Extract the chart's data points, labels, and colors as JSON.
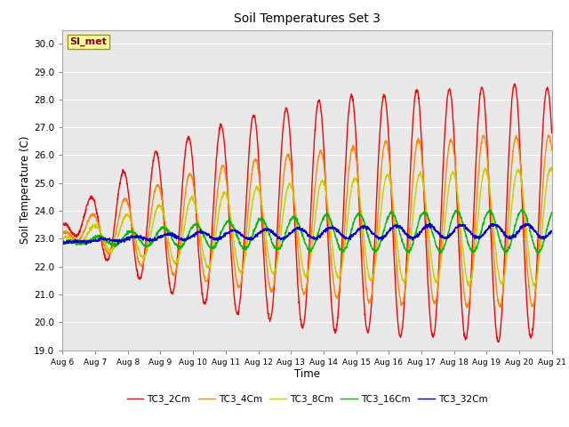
{
  "title": "Soil Temperatures Set 3",
  "xlabel": "Time",
  "ylabel": "Soil Temperature (C)",
  "ylim": [
    19.0,
    30.5
  ],
  "yticks": [
    19.0,
    20.0,
    21.0,
    22.0,
    23.0,
    24.0,
    25.0,
    26.0,
    27.0,
    28.0,
    29.0,
    30.0
  ],
  "bg_color": "#ffffff",
  "plot_bg": "#e8e8e8",
  "series": [
    {
      "label": "TC3_2Cm",
      "color": "#ff0000",
      "amplitude": 4.7,
      "mean": 23.5,
      "phase_shift_hr": 0.0,
      "amp_grow_days": 4.0
    },
    {
      "label": "TC3_4Cm",
      "color": "#ff8800",
      "amplitude": 3.2,
      "mean": 23.2,
      "phase_shift_hr": 1.2,
      "amp_grow_days": 4.5
    },
    {
      "label": "TC3_8Cm",
      "color": "#cccc00",
      "amplitude": 2.2,
      "mean": 23.0,
      "phase_shift_hr": 2.5,
      "amp_grow_days": 5.0
    },
    {
      "label": "TC3_16Cm",
      "color": "#00bb00",
      "amplitude": 0.85,
      "mean": 22.85,
      "phase_shift_hr": 5.5,
      "amp_grow_days": 6.0
    },
    {
      "label": "TC3_32Cm",
      "color": "#0000cc",
      "amplitude": 0.28,
      "mean": 22.85,
      "phase_shift_hr": 9.0,
      "amp_grow_days": 7.0
    }
  ],
  "annotation_label": "SI_met",
  "total_days": 15,
  "start_day": 6,
  "peak_hour": 14.5,
  "linewidth": 1.0,
  "points_per_day": 144
}
